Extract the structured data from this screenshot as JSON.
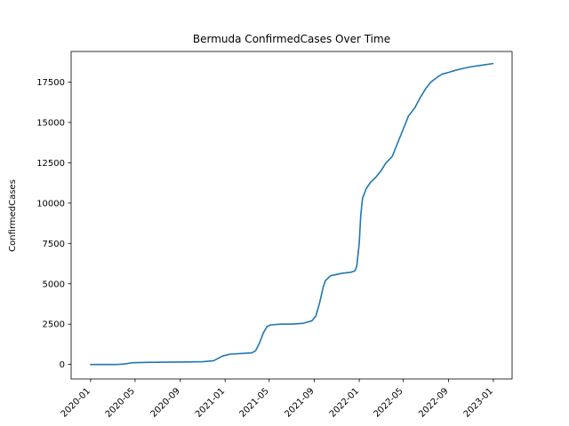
{
  "chart_data": {
    "type": "line",
    "title": "Bermuda  ConfirmedCases Over Time",
    "xlabel": "",
    "ylabel": "ConfirmedCases",
    "xlim": [
      "2019-11-09",
      "2023-02-21"
    ],
    "ylim": [
      -900,
      19400
    ],
    "grid": false,
    "x_ticks": [
      "2020-01",
      "2020-05",
      "2020-09",
      "2021-01",
      "2021-05",
      "2021-09",
      "2022-01",
      "2022-05",
      "2022-09",
      "2023-01"
    ],
    "y_ticks": [
      0,
      2500,
      5000,
      7500,
      10000,
      12500,
      15000,
      17500
    ],
    "y_tick_labels": [
      "0",
      "2500",
      "5000",
      "7500",
      "10000",
      "12500",
      "15000",
      "17500"
    ],
    "colors": {
      "line": "#1f77b4",
      "axes": "#000000"
    },
    "series": [
      {
        "x": [
          "2020-01-01",
          "2020-03-15",
          "2020-04-05",
          "2020-04-25",
          "2020-06-01",
          "2020-09-01",
          "2020-11-01",
          "2020-12-01",
          "2020-12-25",
          "2021-01-15",
          "2021-02-15",
          "2021-03-15",
          "2021-03-25",
          "2021-04-05",
          "2021-04-15",
          "2021-04-25",
          "2021-05-05",
          "2021-06-01",
          "2021-07-01",
          "2021-08-01",
          "2021-08-25",
          "2021-09-05",
          "2021-09-15",
          "2021-09-25",
          "2021-10-01",
          "2021-10-15",
          "2021-11-15",
          "2021-12-10",
          "2021-12-20",
          "2021-12-25",
          "2022-01-01",
          "2022-01-05",
          "2022-01-10",
          "2022-01-20",
          "2022-02-01",
          "2022-02-15",
          "2022-03-01",
          "2022-03-15",
          "2022-04-01",
          "2022-04-15",
          "2022-05-01",
          "2022-05-15",
          "2022-06-01",
          "2022-06-15",
          "2022-07-01",
          "2022-07-15",
          "2022-08-01",
          "2022-08-15",
          "2022-09-01",
          "2022-09-15",
          "2022-10-01",
          "2022-11-01",
          "2022-12-01",
          "2022-12-31"
        ],
        "y": [
          0,
          0,
          40,
          110,
          130,
          150,
          170,
          230,
          520,
          640,
          680,
          720,
          850,
          1350,
          1950,
          2350,
          2450,
          2500,
          2500,
          2550,
          2700,
          3000,
          3800,
          4800,
          5200,
          5500,
          5650,
          5720,
          5800,
          6050,
          7500,
          9200,
          10300,
          10900,
          11300,
          11600,
          12000,
          12500,
          12900,
          13700,
          14600,
          15400,
          15900,
          16500,
          17100,
          17500,
          17800,
          18000,
          18100,
          18200,
          18300,
          18450,
          18550,
          18650
        ]
      }
    ]
  }
}
